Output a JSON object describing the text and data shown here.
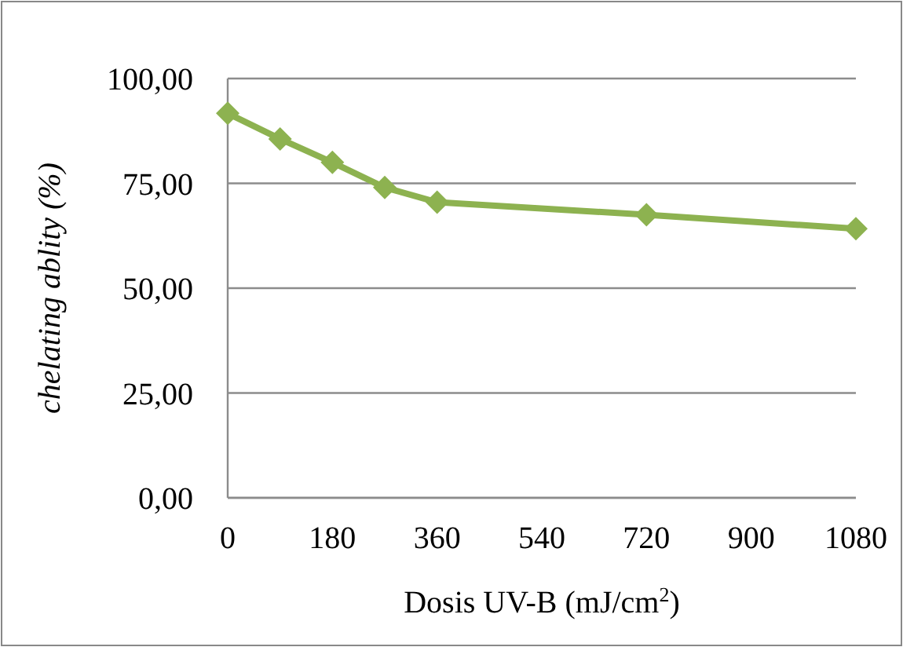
{
  "chart_data": {
    "type": "line",
    "xlabel": "Dosis UV-B (mJ/cm$^{2}$)",
    "ylabel": "chelating ablity (%)",
    "x": [
      0,
      90,
      180,
      270,
      360,
      720,
      1080
    ],
    "series": [
      {
        "color": "#8db250",
        "values": [
          91.7,
          85.6,
          80.0,
          74.0,
          70.5,
          67.5,
          64.2
        ]
      }
    ],
    "xlim": [
      0,
      1080
    ],
    "xticks": [
      0,
      180,
      360,
      540,
      720,
      900,
      1080
    ],
    "ylim": [
      0,
      100
    ],
    "yticks": [
      {
        "value": 0,
        "label": "0,00"
      },
      {
        "value": 25,
        "label": "25,00"
      },
      {
        "value": 50,
        "label": "50,00"
      },
      {
        "value": 75,
        "label": "75,00"
      },
      {
        "value": 100,
        "label": "100,00"
      }
    ],
    "grid": "y",
    "marker": "diamond",
    "line_style": "solid"
  }
}
